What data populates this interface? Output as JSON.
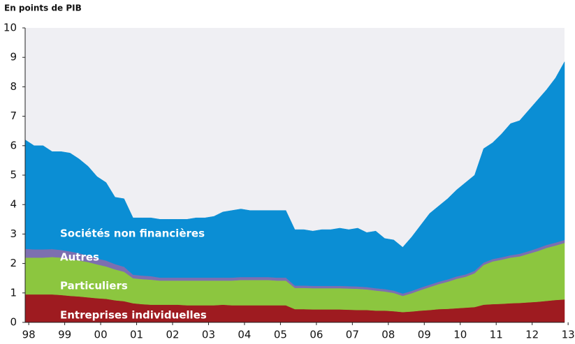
{
  "chart_data": {
    "type": "stacked_area",
    "title": "En points de PIB",
    "x": [
      1997.9,
      1998.15,
      1998.4,
      1998.65,
      1998.9,
      1999.15,
      1999.4,
      1999.65,
      1999.9,
      2000.15,
      2000.4,
      2000.65,
      2000.9,
      2001.15,
      2001.4,
      2001.65,
      2001.9,
      2002.15,
      2002.4,
      2002.65,
      2002.9,
      2003.15,
      2003.4,
      2003.65,
      2003.9,
      2004.15,
      2004.4,
      2004.65,
      2004.9,
      2005.15,
      2005.4,
      2005.65,
      2005.9,
      2006.15,
      2006.4,
      2006.65,
      2006.9,
      2007.15,
      2007.4,
      2007.65,
      2007.9,
      2008.15,
      2008.4,
      2008.65,
      2008.9,
      2009.15,
      2009.4,
      2009.65,
      2009.9,
      2010.15,
      2010.4,
      2010.65,
      2010.9,
      2011.15,
      2011.4,
      2011.65,
      2011.9,
      2012.15,
      2012.4,
      2012.65,
      2012.9
    ],
    "series": [
      {
        "name": "Entreprises individuelles",
        "color": "#9e1b20",
        "values": [
          0.95,
          0.95,
          0.95,
          0.95,
          0.93,
          0.9,
          0.88,
          0.85,
          0.82,
          0.8,
          0.75,
          0.72,
          0.65,
          0.62,
          0.6,
          0.6,
          0.6,
          0.6,
          0.58,
          0.58,
          0.58,
          0.58,
          0.6,
          0.58,
          0.58,
          0.58,
          0.58,
          0.58,
          0.58,
          0.58,
          0.45,
          0.45,
          0.44,
          0.44,
          0.44,
          0.44,
          0.43,
          0.42,
          0.42,
          0.4,
          0.4,
          0.38,
          0.35,
          0.37,
          0.4,
          0.42,
          0.45,
          0.46,
          0.48,
          0.5,
          0.52,
          0.6,
          0.62,
          0.63,
          0.65,
          0.66,
          0.68,
          0.7,
          0.73,
          0.76,
          0.78
        ]
      },
      {
        "name": "Particuliers",
        "color": "#8cc63f",
        "values": [
          1.25,
          1.25,
          1.25,
          1.27,
          1.27,
          1.25,
          1.22,
          1.2,
          1.15,
          1.1,
          1.05,
          1.0,
          0.85,
          0.85,
          0.85,
          0.82,
          0.82,
          0.82,
          0.84,
          0.84,
          0.84,
          0.84,
          0.82,
          0.84,
          0.86,
          0.86,
          0.86,
          0.86,
          0.84,
          0.84,
          0.72,
          0.72,
          0.72,
          0.72,
          0.72,
          0.72,
          0.72,
          0.72,
          0.7,
          0.68,
          0.65,
          0.62,
          0.55,
          0.62,
          0.7,
          0.78,
          0.85,
          0.92,
          1.0,
          1.05,
          1.15,
          1.35,
          1.45,
          1.5,
          1.55,
          1.58,
          1.65,
          1.72,
          1.8,
          1.85,
          1.92
        ]
      },
      {
        "name": "Autres",
        "color": "#7d6fb0",
        "values": [
          0.3,
          0.28,
          0.28,
          0.27,
          0.26,
          0.26,
          0.25,
          0.22,
          0.2,
          0.2,
          0.18,
          0.17,
          0.12,
          0.12,
          0.12,
          0.1,
          0.1,
          0.1,
          0.1,
          0.1,
          0.1,
          0.1,
          0.1,
          0.1,
          0.1,
          0.1,
          0.1,
          0.1,
          0.1,
          0.1,
          0.08,
          0.08,
          0.08,
          0.08,
          0.08,
          0.08,
          0.08,
          0.08,
          0.08,
          0.08,
          0.08,
          0.08,
          0.08,
          0.08,
          0.08,
          0.08,
          0.08,
          0.08,
          0.08,
          0.08,
          0.08,
          0.08,
          0.08,
          0.08,
          0.08,
          0.09,
          0.09,
          0.1,
          0.1,
          0.1,
          0.1
        ]
      },
      {
        "name": "Sociétés non financières",
        "color": "#0b8ed4",
        "values": [
          3.7,
          3.52,
          3.52,
          3.31,
          3.34,
          3.34,
          3.2,
          3.03,
          2.78,
          2.65,
          2.27,
          2.31,
          1.93,
          1.96,
          1.98,
          1.98,
          1.98,
          1.98,
          1.98,
          2.03,
          2.03,
          2.08,
          2.23,
          2.28,
          2.31,
          2.26,
          2.26,
          2.26,
          2.28,
          2.28,
          1.9,
          1.9,
          1.86,
          1.91,
          1.91,
          1.96,
          1.92,
          1.98,
          1.85,
          1.94,
          1.72,
          1.72,
          1.57,
          1.83,
          2.12,
          2.42,
          2.57,
          2.74,
          2.94,
          3.12,
          3.25,
          3.87,
          3.95,
          4.19,
          4.47,
          4.52,
          4.78,
          5.03,
          5.27,
          5.59,
          6.05
        ]
      }
    ],
    "xlim": [
      1997.9,
      2012.9
    ],
    "xticks": [
      {
        "value": 1998,
        "label": "98"
      },
      {
        "value": 1999,
        "label": "99"
      },
      {
        "value": 2000,
        "label": "00"
      },
      {
        "value": 2001,
        "label": "01"
      },
      {
        "value": 2002,
        "label": "02"
      },
      {
        "value": 2003,
        "label": "03"
      },
      {
        "value": 2004,
        "label": "04"
      },
      {
        "value": 2005,
        "label": "05"
      },
      {
        "value": 2006,
        "label": "06"
      },
      {
        "value": 2007,
        "label": "07"
      },
      {
        "value": 2008,
        "label": "08"
      },
      {
        "value": 2009,
        "label": "09"
      },
      {
        "value": 2010,
        "label": "10"
      },
      {
        "value": 2011,
        "label": "11"
      },
      {
        "value": 2012,
        "label": "12"
      },
      {
        "value": 2013,
        "label": "13"
      }
    ],
    "ylim": [
      0,
      10
    ],
    "yticks": [
      0,
      1,
      2,
      3,
      4,
      5,
      6,
      7,
      8,
      9,
      10
    ]
  }
}
